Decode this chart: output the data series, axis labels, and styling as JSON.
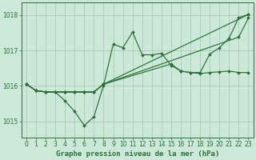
{
  "background_color": "#cce8d8",
  "grid_color": "#aaccb8",
  "line_color": "#2d6e3a",
  "marker_color": "#2d6e3a",
  "title": "Graphe pression niveau de la mer (hPa)",
  "title_fontsize": 6.5,
  "xlim": [
    -0.5,
    23.5
  ],
  "ylim": [
    1014.55,
    1018.35
  ],
  "yticks": [
    1015,
    1016,
    1017,
    1018
  ],
  "xticks": [
    0,
    1,
    2,
    3,
    4,
    5,
    6,
    7,
    8,
    9,
    10,
    11,
    12,
    13,
    14,
    15,
    16,
    17,
    18,
    19,
    20,
    21,
    22,
    23
  ],
  "series1_x": [
    0,
    1,
    2,
    3,
    4,
    5,
    6,
    7,
    8,
    9,
    10,
    11,
    12,
    13,
    14,
    15,
    16,
    17,
    18,
    19,
    20,
    21,
    22,
    23
  ],
  "series1_y": [
    1016.05,
    1015.87,
    1015.83,
    1015.83,
    1015.58,
    1015.28,
    1014.88,
    1015.13,
    1016.02,
    1017.18,
    1017.08,
    1017.52,
    1016.88,
    1016.88,
    1016.92,
    1016.58,
    1016.42,
    1016.38,
    1016.38,
    1016.9,
    1017.08,
    1017.35,
    1017.93,
    1018.02
  ],
  "series2_x": [
    0,
    1,
    2,
    3,
    4,
    5,
    6,
    7,
    8,
    23
  ],
  "series2_y": [
    1016.05,
    1015.87,
    1015.83,
    1015.83,
    1015.83,
    1015.83,
    1015.83,
    1015.83,
    1016.05,
    1018.02
  ],
  "series3_x": [
    0,
    1,
    2,
    3,
    4,
    5,
    6,
    7,
    8,
    22,
    23
  ],
  "series3_y": [
    1016.05,
    1015.87,
    1015.83,
    1015.83,
    1015.83,
    1015.83,
    1015.83,
    1015.83,
    1016.05,
    1017.38,
    1017.92
  ],
  "series4_x": [
    0,
    1,
    2,
    3,
    4,
    5,
    6,
    7,
    8,
    15,
    16,
    17,
    18,
    19,
    20,
    21,
    22,
    23
  ],
  "series4_y": [
    1016.05,
    1015.87,
    1015.83,
    1015.83,
    1015.83,
    1015.83,
    1015.83,
    1015.83,
    1016.05,
    1016.62,
    1016.42,
    1016.38,
    1016.35,
    1016.38,
    1016.4,
    1016.42,
    1016.38,
    1016.38
  ]
}
